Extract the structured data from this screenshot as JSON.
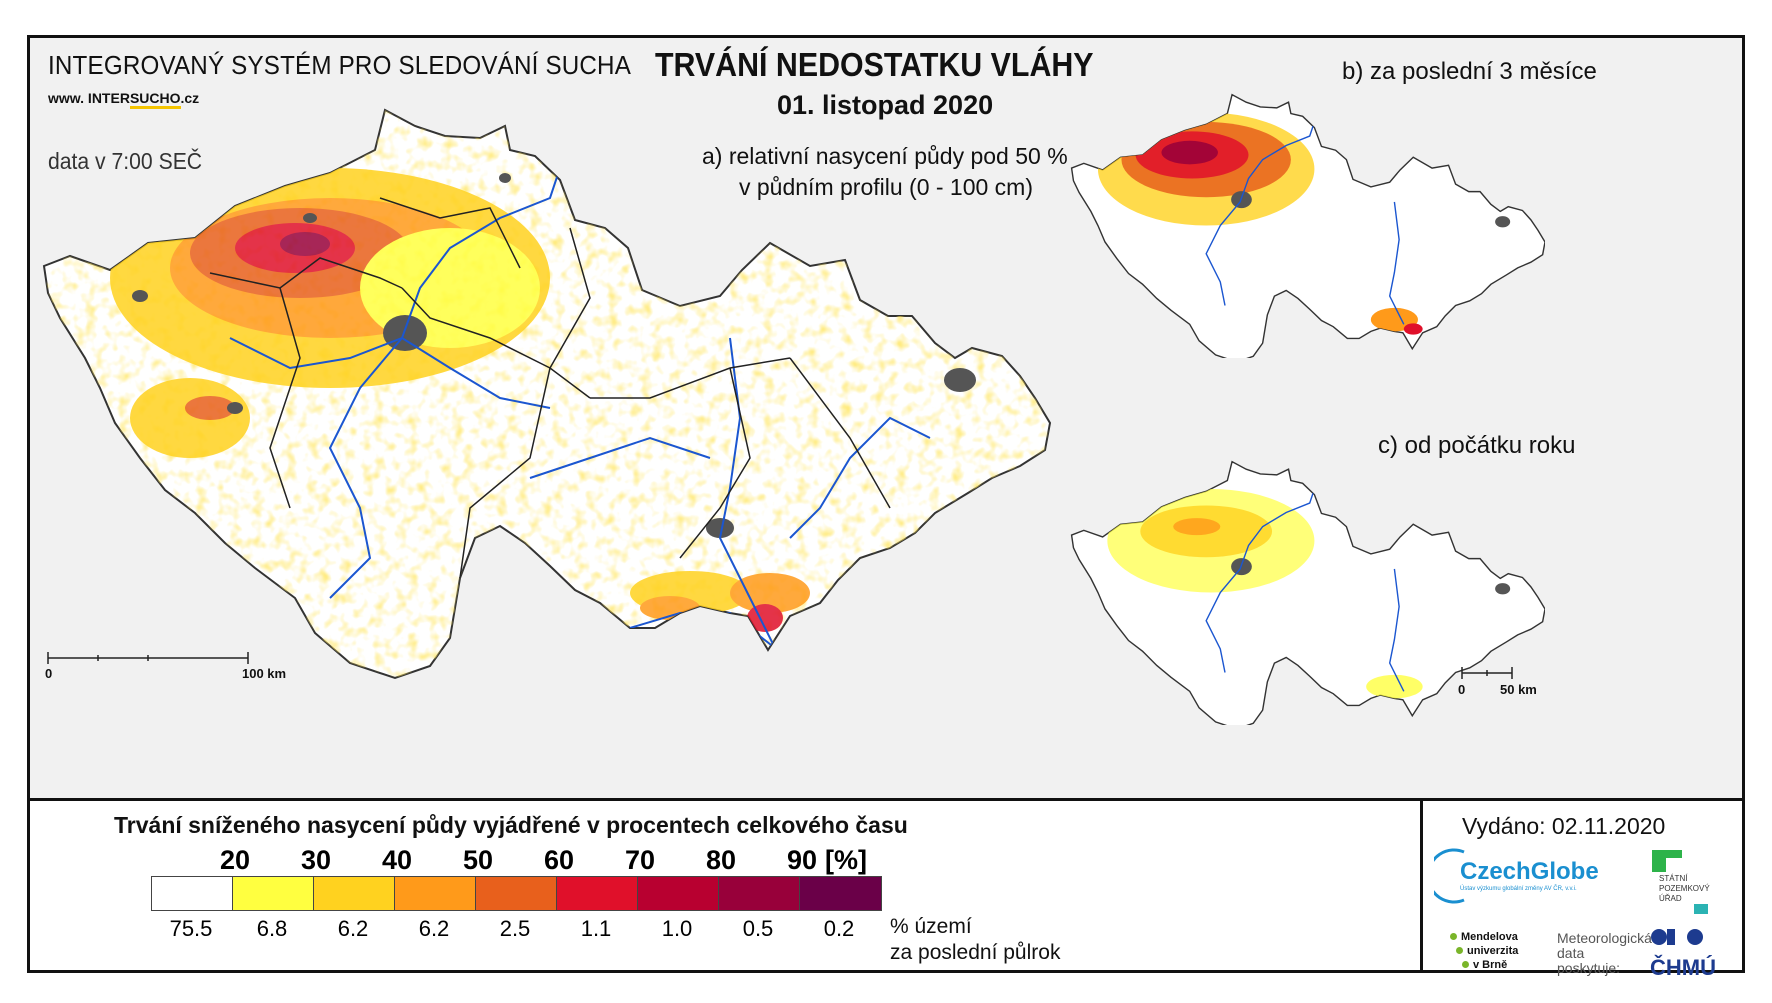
{
  "header": {
    "system_name": "INTEGROVANÝ SYSTÉM PRO SLEDOVÁNÍ SUCHA",
    "url_prefix": "www. INTER",
    "url_accent": "SUCHO",
    "url_suffix": ".cz",
    "data_time": "data v 7:00 SEČ",
    "title": "TRVÁNÍ NEDOSTATKU VLÁHY",
    "date": "01. listopad 2020"
  },
  "maps": {
    "main_subtitle_line1": "a) relativní nasycení půdy pod 50 %",
    "main_subtitle_line2": "v půdním profilu (0 - 100 cm)",
    "panel_b_title": "b) za poslední 3 měsíce",
    "panel_c_title": "c) od počátku roku",
    "main_scale_zero": "0",
    "main_scale_end": "100 km",
    "small_scale_zero": "0",
    "small_scale_end": "50 km"
  },
  "legend": {
    "title": "Trvání sníženého nasycení půdy vyjádřené v procentech celkového času",
    "class_labels": [
      "20",
      "30",
      "40",
      "50",
      "60",
      "70",
      "80",
      "90",
      "[%]"
    ],
    "colors": [
      "#ffffff",
      "#ffff40",
      "#ffd21f",
      "#ff9a1a",
      "#e8601c",
      "#e0102a",
      "#b80030",
      "#98003a",
      "#6a0048"
    ],
    "area_percentages": [
      "75.5",
      "6.8",
      "6.2",
      "6.2",
      "2.5",
      "1.1",
      "1.0",
      "0.5",
      "0.2"
    ],
    "footnote_line1": "% území",
    "footnote_line2": "za poslední půlrok"
  },
  "footer": {
    "issued": "Vydáno: 02.11.2020",
    "czechglobe": "CzechGlobe",
    "czechglobe_sub": "Ústav výzkumu globální změny AV ČR, v.v.i.",
    "spu_line1": "STÁTNÍ",
    "spu_line2": "POZEMKOVÝ",
    "spu_line3": "ÚŘAD",
    "mendel_line1": "Mendelova",
    "mendel_line2": "univerzita",
    "mendel_line3": "v Brně",
    "met_line1": "Meteorologická",
    "met_line2": "data",
    "met_line3": "poskytuje:",
    "chmu": "ČHMÚ"
  }
}
